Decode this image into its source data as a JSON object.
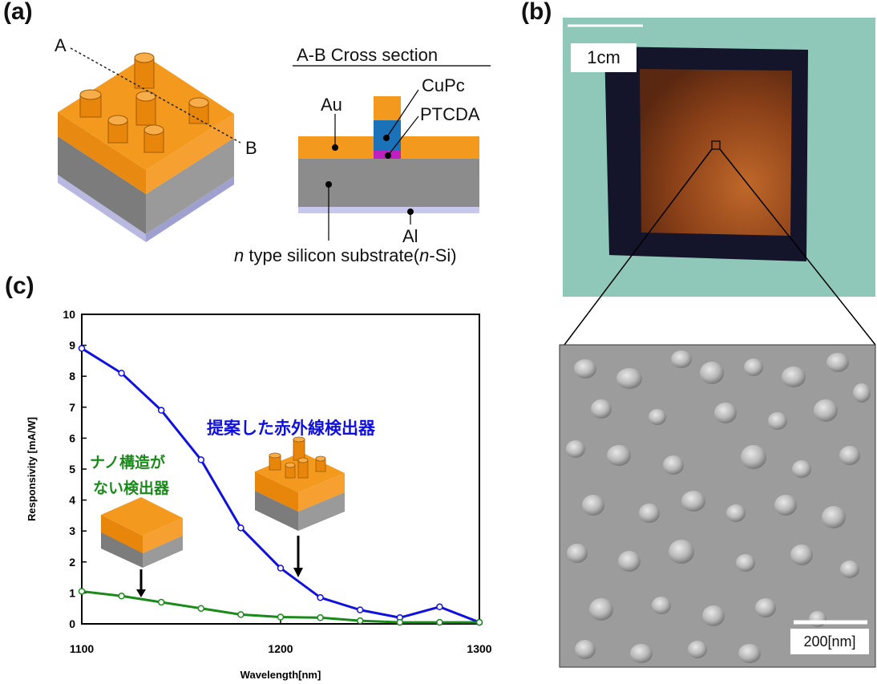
{
  "figure": {
    "panel_a": {
      "label": "(a)",
      "point_a": "A",
      "point_b": "B",
      "cross_section_title": "A-B Cross section",
      "layers": {
        "au": "Au",
        "cupc": "CuPc",
        "ptcda": "PTCDA",
        "al": "Al",
        "substrate_prefix": "n",
        "substrate_mid": " type silicon substrate(",
        "substrate_n": "n",
        "substrate_suffix": "-Si)"
      }
    },
    "panel_b": {
      "label": "(b)",
      "scale_photo": "1cm",
      "scale_sem": "200[nm]"
    },
    "panel_c": {
      "label": "(c)",
      "annotation_proposed": "提案した赤外線検出器",
      "annotation_plain_line1": "ナノ構造が",
      "annotation_plain_line2": "ない検出器"
    },
    "colors": {
      "gold": "#f39a1e",
      "silicon": "#8c8c8c",
      "aluminum": "#c8c8ee",
      "cupc": "#1a73b8",
      "ptcda": "#c020c0",
      "proposed_series": "#1010e0",
      "plain_series": "#1a8a1a",
      "photo_background": "#8fc8b8",
      "sample_frame": "#14142a",
      "sample_center": "#7a3a18"
    }
  },
  "chart_data": {
    "type": "line",
    "xlabel": "Wavelength[nm]",
    "ylabel": "Responsivity [mA/W]",
    "xlim": [
      1100,
      1300
    ],
    "ylim": [
      0,
      10
    ],
    "x_ticks": [
      "1100",
      "1200",
      "1300"
    ],
    "y_ticks": [
      "0",
      "1",
      "2",
      "3",
      "4",
      "5",
      "6",
      "7",
      "8",
      "9",
      "10"
    ],
    "grid": false,
    "series": [
      {
        "color": "#1010e0",
        "x": [
          1100,
          1120,
          1140,
          1160,
          1180,
          1200,
          1220,
          1240,
          1260,
          1280,
          1300
        ],
        "y": [
          8.9,
          8.1,
          6.9,
          5.3,
          3.1,
          1.8,
          0.85,
          0.45,
          0.2,
          0.55,
          0.05
        ]
      },
      {
        "color": "#1a8a1a",
        "x": [
          1100,
          1120,
          1140,
          1160,
          1180,
          1200,
          1220,
          1240,
          1260,
          1280,
          1300
        ],
        "y": [
          1.05,
          0.9,
          0.7,
          0.5,
          0.3,
          0.22,
          0.2,
          0.1,
          0.05,
          0.05,
          0.05
        ]
      }
    ]
  }
}
